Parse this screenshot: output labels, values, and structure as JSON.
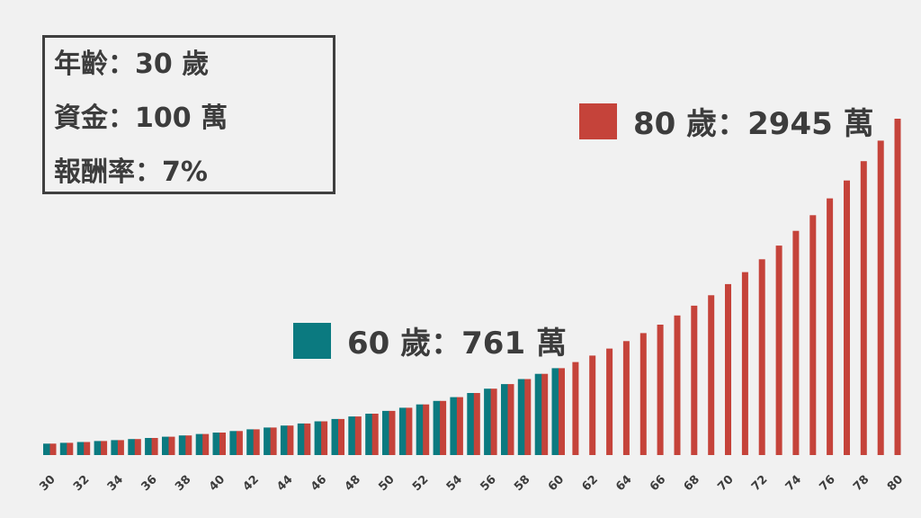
{
  "info": {
    "age_line": "年齡：30 歲",
    "capital_line": "資金：100 萬",
    "return_line": "報酬率：7%"
  },
  "legend": {
    "at60": {
      "label": "60 歲：761 萬",
      "color": "#0b7a80"
    },
    "at80": {
      "label": "80 歲：2945 萬",
      "color": "#c5433a"
    }
  },
  "chart_data": {
    "type": "bar",
    "xlabel": "",
    "ylabel": "",
    "ylim": [
      0,
      3000
    ],
    "grid": false,
    "series": [
      {
        "color": "#0b7a80",
        "x": [
          30,
          31,
          32,
          33,
          34,
          35,
          36,
          37,
          38,
          39,
          40,
          41,
          42,
          43,
          44,
          45,
          46,
          47,
          48,
          49,
          50,
          51,
          52,
          53,
          54,
          55,
          56,
          57,
          58,
          59,
          60
        ],
        "values": [
          100,
          107,
          114,
          123,
          131,
          140,
          150,
          161,
          172,
          184,
          197,
          210,
          225,
          241,
          258,
          276,
          295,
          316,
          338,
          362,
          387,
          414,
          443,
          474,
          507,
          543,
          581,
          621,
          665,
          711,
          761
        ]
      },
      {
        "color": "#c5433a",
        "x": [
          30,
          31,
          32,
          33,
          34,
          35,
          36,
          37,
          38,
          39,
          40,
          41,
          42,
          43,
          44,
          45,
          46,
          47,
          48,
          49,
          50,
          51,
          52,
          53,
          54,
          55,
          56,
          57,
          58,
          59,
          60,
          61,
          62,
          63,
          64,
          65,
          66,
          67,
          68,
          69,
          70,
          71,
          72,
          73,
          74,
          75,
          76,
          77,
          78,
          79,
          80
        ],
        "values": [
          100,
          107,
          114,
          123,
          131,
          140,
          150,
          161,
          172,
          184,
          197,
          210,
          225,
          241,
          258,
          276,
          295,
          316,
          338,
          362,
          387,
          414,
          443,
          474,
          507,
          543,
          581,
          621,
          665,
          711,
          761,
          814,
          871,
          932,
          998,
          1068,
          1142,
          1222,
          1308,
          1399,
          1497,
          1602,
          1714,
          1834,
          1963,
          2100,
          2247,
          2404,
          2573,
          2753,
          2945
        ]
      }
    ],
    "tick_labels": [
      "30",
      "32",
      "34",
      "36",
      "38",
      "40",
      "42",
      "44",
      "46",
      "48",
      "50",
      "52",
      "54",
      "56",
      "58",
      "60",
      "62",
      "64",
      "66",
      "68",
      "70",
      "72",
      "74",
      "76",
      "78",
      "80"
    ]
  }
}
